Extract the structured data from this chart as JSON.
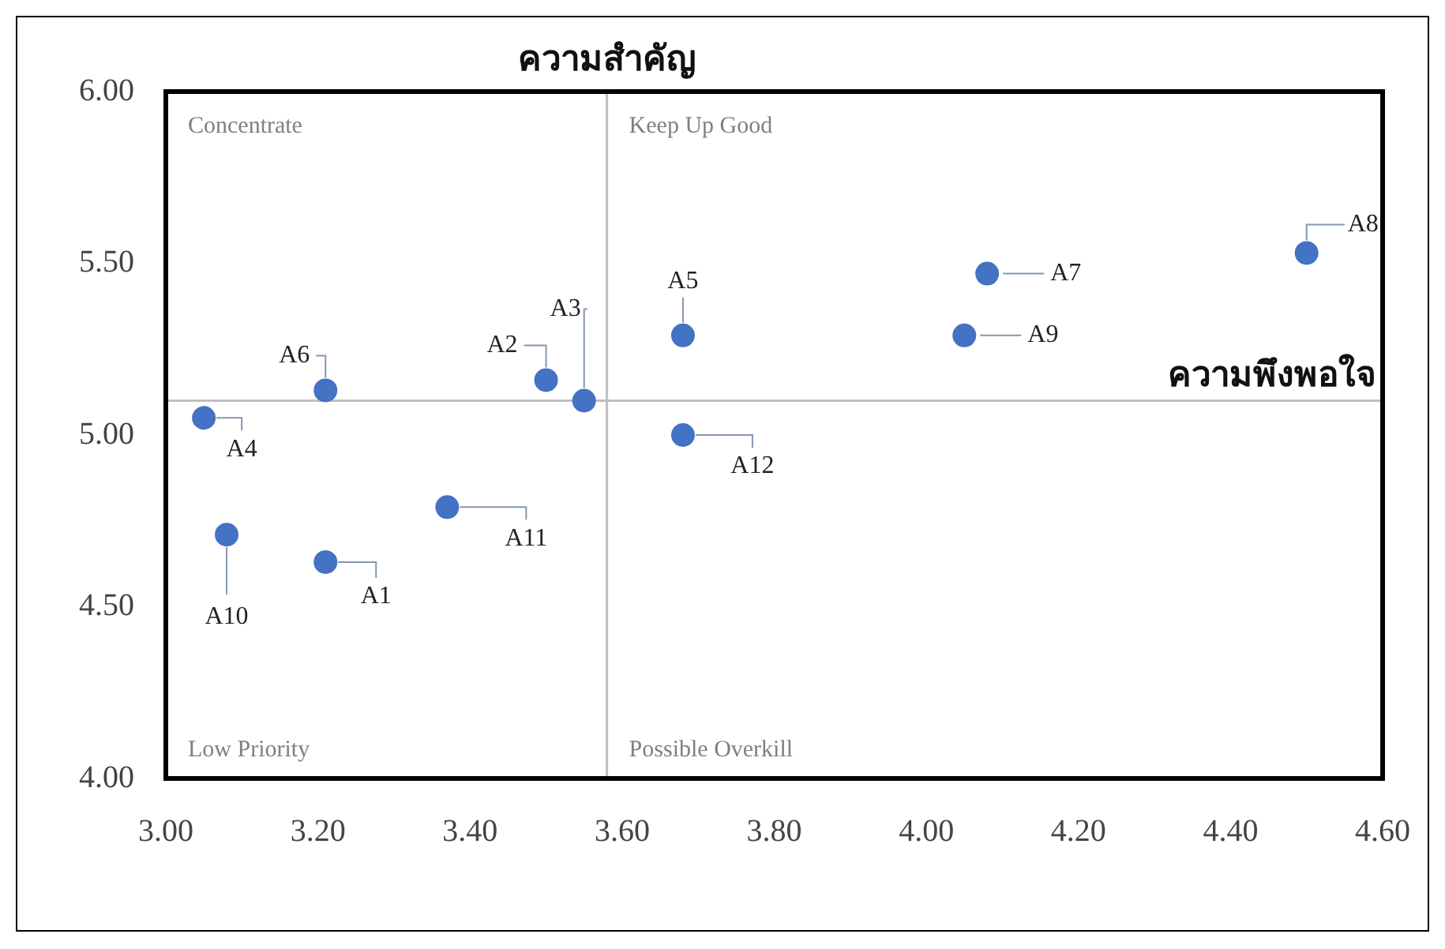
{
  "chart_data": {
    "type": "scatter",
    "x": [
      3.21,
      3.5,
      3.55,
      3.05,
      3.68,
      3.21,
      4.08,
      4.5,
      4.05,
      3.08,
      3.37,
      3.68
    ],
    "series": [
      {
        "color": "#4472c4",
        "values": [
          4.63,
          5.16,
          5.1,
          5.05,
          5.29,
          5.13,
          5.47,
          5.53,
          5.29,
          4.71,
          4.79,
          5.0
        ]
      }
    ],
    "xlim": [
      3.0,
      4.6
    ],
    "xticks": [
      {
        "value": 3.0,
        "label": "3.00"
      },
      {
        "value": 3.2,
        "label": "3.20"
      },
      {
        "value": 3.4,
        "label": "3.40"
      },
      {
        "value": 3.6,
        "label": "3.60"
      },
      {
        "value": 3.8,
        "label": "3.80"
      },
      {
        "value": 4.0,
        "label": "4.00"
      },
      {
        "value": 4.2,
        "label": "4.20"
      },
      {
        "value": 4.4,
        "label": "4.40"
      },
      {
        "value": 4.6,
        "label": "4.60"
      }
    ],
    "ylim": [
      4.0,
      6.0
    ],
    "yticks": [
      {
        "value": 4.0,
        "label": "4.00"
      },
      {
        "value": 4.5,
        "label": "4.50"
      },
      {
        "value": 5.0,
        "label": "5.00"
      },
      {
        "value": 5.5,
        "label": "5.50"
      },
      {
        "value": 6.0,
        "label": "6.00"
      }
    ],
    "ref_lines": [
      {
        "axis": "x",
        "value": 3.58,
        "label": "ความสำคัญ",
        "color": "#bfbfbf"
      },
      {
        "axis": "y",
        "value": 5.1,
        "label": "ความพึงพอใจ",
        "color": "#bfbfbf"
      }
    ],
    "annotations": [
      {
        "text": "A1",
        "x": 3.21,
        "y": 4.63
      },
      {
        "text": "A2",
        "x": 3.5,
        "y": 5.16
      },
      {
        "text": "A3",
        "x": 3.55,
        "y": 5.1
      },
      {
        "text": "A4",
        "x": 3.05,
        "y": 5.05
      },
      {
        "text": "A5",
        "x": 3.68,
        "y": 5.29
      },
      {
        "text": "A6",
        "x": 3.21,
        "y": 5.13
      },
      {
        "text": "A7",
        "x": 4.08,
        "y": 5.47
      },
      {
        "text": "A8",
        "x": 4.5,
        "y": 5.53
      },
      {
        "text": "A9",
        "x": 4.05,
        "y": 5.29
      },
      {
        "text": "A10",
        "x": 3.08,
        "y": 4.71
      },
      {
        "text": "A11",
        "x": 3.37,
        "y": 4.79
      },
      {
        "text": "A12",
        "x": 3.68,
        "y": 5.0
      },
      "Concentrate",
      "Keep Up Good",
      "Low Priority",
      "Possible Overkill"
    ],
    "grid": false,
    "legend": false,
    "marker": "circle"
  }
}
